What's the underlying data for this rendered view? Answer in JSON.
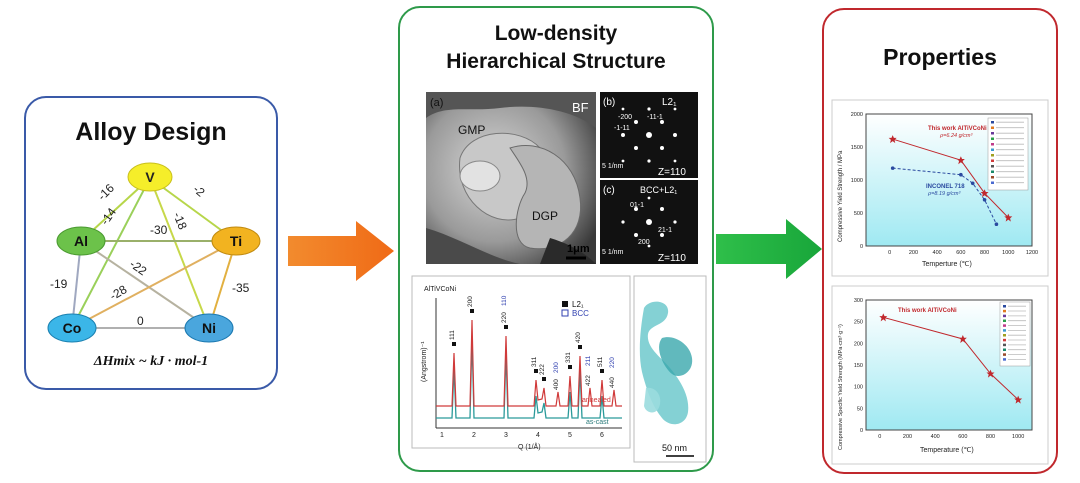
{
  "alloy_design": {
    "title": "Alloy Design",
    "nodes": [
      {
        "label": "V",
        "color": "#f5ee2a"
      },
      {
        "label": "Al",
        "color": "#6cc24a"
      },
      {
        "label": "Ti",
        "color": "#f2b320"
      },
      {
        "label": "Co",
        "color": "#3bb6e8"
      },
      {
        "label": "Ni",
        "color": "#4aa6dd"
      }
    ],
    "edge_labels": {
      "v_al": "-16",
      "v_ti": "-2",
      "v_co": "-14",
      "v_ni": "-18",
      "al_ti": "-30",
      "al_ni": "-22",
      "al_co": "-19",
      "ti_co": "-28",
      "ti_ni": "-35",
      "co_ni": "0"
    },
    "formula": "ΔHmix ~ kJ · mol-1"
  },
  "structure": {
    "title_line1": "Low-density",
    "title_line2": "Hierarchical Structure",
    "tem": {
      "panel_a": "(a)",
      "bf": "BF",
      "gmp": "GMP",
      "dgp": "DGP",
      "scale": "1μm"
    },
    "diffraction_b": {
      "label": "(b)",
      "phase": "L2₁",
      "zone": "Z=110",
      "scale": "5 1/nm",
      "spots": [
        "-200",
        "-11-1",
        "-1-11"
      ]
    },
    "diffraction_c": {
      "label": "(c)",
      "phase": "BCC+L2₁",
      "zone": "Z=110",
      "scale": "5 1/nm",
      "spots": [
        "01-1",
        "21-1",
        "200"
      ]
    },
    "xrd": {
      "sample": "AlTiVCoNi",
      "legend_l21": "L2₁",
      "legend_bcc": "BCC",
      "ylabel": "(Angstrom)⁻¹",
      "xlabel": "Q (1/Å)",
      "xticks": [
        "1",
        "2",
        "3",
        "4",
        "5",
        "6"
      ],
      "annealed": "annealed",
      "as_cast": "as-cast",
      "peaks": [
        "111",
        "200",
        "220",
        "110",
        "311",
        "222",
        "400",
        "200",
        "331",
        "420",
        "422",
        "211",
        "511",
        "440",
        "220"
      ]
    },
    "apt_scale": "50 nm"
  },
  "properties": {
    "title": "Properties",
    "chart1": {
      "ylabel": "Compressive Yield Strength / MPa",
      "xlabel": "Temperture (℃)",
      "yticks": [
        "0",
        "500",
        "1000",
        "1500",
        "2000"
      ],
      "xticks": [
        "0",
        "200",
        "400",
        "600",
        "800",
        "1000",
        "1200"
      ],
      "this_work": "This work  AlTiVCoNi",
      "this_work_density": "ρ=6.24 g/cm³",
      "inconel": "INCONEL 718",
      "inconel_density": "ρ=8.19 g/cm³"
    },
    "chart2": {
      "ylabel": "Compressive Specific Yield Strength (MPa·cm³·g⁻¹)",
      "xlabel": "Temperature (℃)",
      "yticks": [
        "0",
        "50",
        "100",
        "150",
        "200",
        "250",
        "300"
      ],
      "xticks": [
        "0",
        "200",
        "400",
        "600",
        "800",
        "1000"
      ],
      "this_work": "This work  AlTiVCoNi"
    }
  },
  "chart_data": [
    {
      "type": "line",
      "title": "",
      "xlabel": "Temperture (℃)",
      "ylabel": "Compressive Yield Strength / MPa",
      "xlim": [
        -200,
        1200
      ],
      "ylim": [
        0,
        2000
      ],
      "series": [
        {
          "name": "This work AlTiVCoNi",
          "x": [
            25,
            600,
            800,
            1000
          ],
          "y": [
            1620,
            1300,
            800,
            430
          ]
        },
        {
          "name": "INCONEL 718",
          "x": [
            25,
            600,
            700,
            800,
            900
          ],
          "y": [
            1180,
            1080,
            950,
            700,
            330
          ]
        }
      ]
    },
    {
      "type": "line",
      "title": "",
      "xlabel": "Temperature (℃)",
      "ylabel": "Compressive Specific Yield Strength (MPa·cm³·g⁻¹)",
      "xlim": [
        -100,
        1100
      ],
      "ylim": [
        0,
        300
      ],
      "series": [
        {
          "name": "This work AlTiVCoNi",
          "x": [
            25,
            600,
            800,
            1000
          ],
          "y": [
            260,
            210,
            130,
            70
          ]
        }
      ]
    }
  ]
}
